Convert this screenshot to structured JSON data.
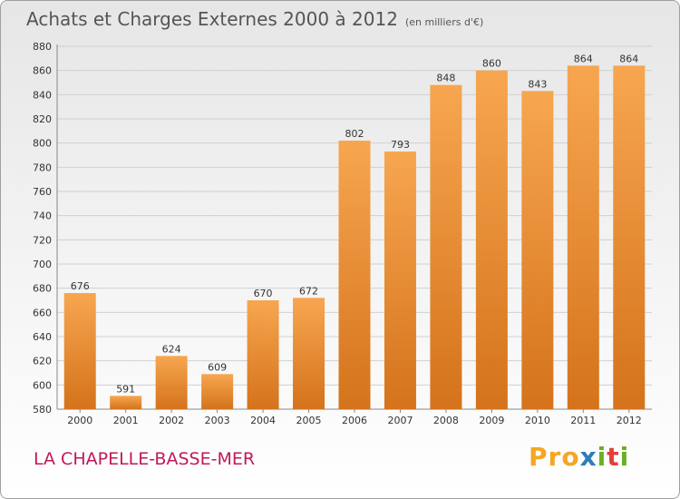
{
  "header": {
    "title": "Achats et Charges Externes 2000 à 2012",
    "unit": "(en milliers d'€)"
  },
  "footer": {
    "commune": "LA CHAPELLE-BASSE-MER",
    "logo": {
      "part1": "Pro",
      "part2": "x",
      "part3": "i",
      "part4": "t",
      "part5": "i"
    }
  },
  "chart_data": {
    "type": "bar",
    "categories": [
      "2000",
      "2001",
      "2002",
      "2003",
      "2004",
      "2005",
      "2006",
      "2007",
      "2008",
      "2009",
      "2010",
      "2011",
      "2012"
    ],
    "values": [
      676,
      591,
      624,
      609,
      670,
      672,
      802,
      793,
      848,
      860,
      843,
      864,
      864
    ],
    "title": "Achats et Charges Externes 2000 à 2012",
    "ylim": [
      580,
      880
    ],
    "yticks": [
      580,
      600,
      620,
      640,
      660,
      680,
      700,
      720,
      740,
      760,
      780,
      800,
      820,
      840,
      860,
      880
    ],
    "grid": true,
    "bar_color_top": "#f7a650",
    "bar_color_bottom": "#d4731b"
  }
}
